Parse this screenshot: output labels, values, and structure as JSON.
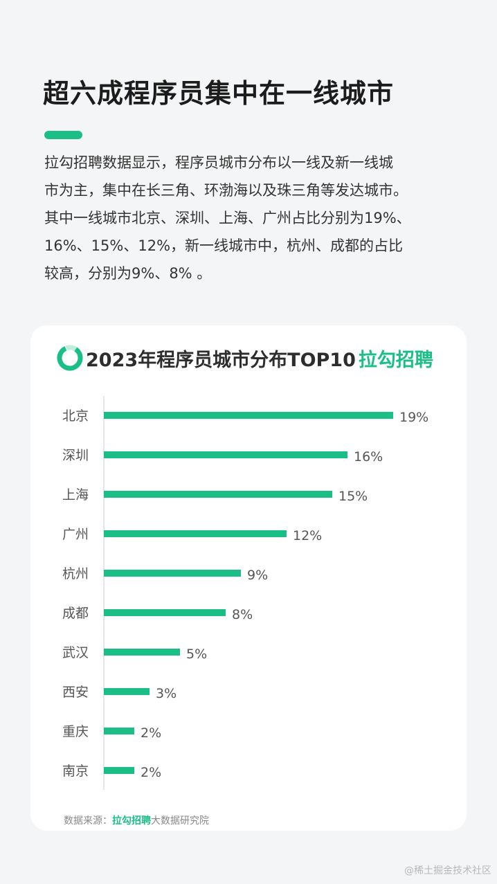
{
  "colors": {
    "accent": "#1bbf86",
    "bar": "#1bbf86"
  },
  "header": {
    "title": "超六成程序员集中在一线城市",
    "intro": "拉勾招聘数据显示，程序员城市分布以一线及新一线城\n市为主，集中在长三角、环渤海以及珠三角等发达城市。\n其中一线城市北京、深圳、上海、广州占比分别为19%、\n16%、15%、12%，新一线城市中，杭州、成都的占比\n较高，分别为9%、8% 。"
  },
  "card": {
    "logo_icon": "ring-logo-icon",
    "title_main": "2023年程序员城市分布TOP10",
    "title_brand": "拉勾招聘",
    "source_prefix": "数据来源：",
    "source_brand": "拉勾招聘",
    "source_suffix": "大数据研究院"
  },
  "chart_data": {
    "type": "bar",
    "orientation": "horizontal",
    "title": "2023年程序员城市分布TOP10",
    "categories": [
      "北京",
      "深圳",
      "上海",
      "广州",
      "杭州",
      "成都",
      "武汉",
      "西安",
      "重庆",
      "南京"
    ],
    "values": [
      19,
      16,
      15,
      12,
      9,
      8,
      5,
      3,
      2,
      2
    ],
    "value_labels": [
      "19%",
      "16%",
      "15%",
      "12%",
      "9%",
      "8%",
      "5%",
      "3%",
      "2%",
      "2%"
    ],
    "unit": "%",
    "grid": false
  },
  "watermark": "@稀土掘金技术社区"
}
